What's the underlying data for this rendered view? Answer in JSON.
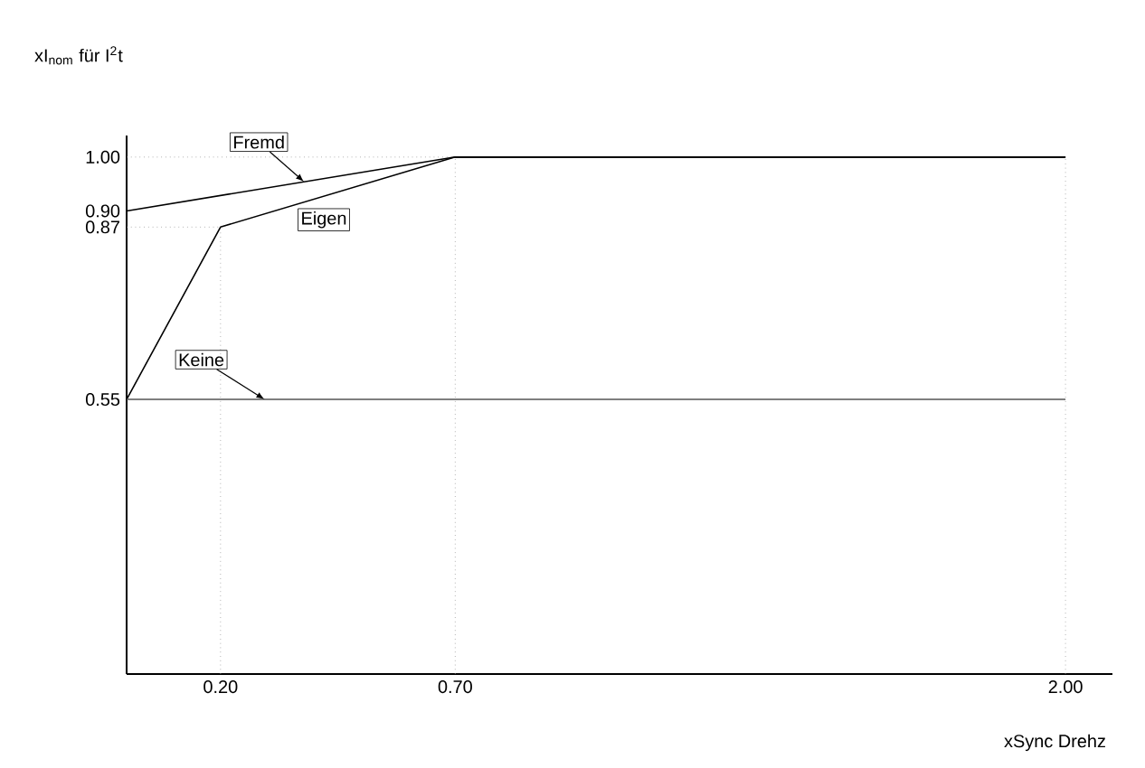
{
  "chart_data": {
    "type": "line",
    "xlabel": "xSync Drehz",
    "ylabel": "xI$_{nom}$ für I$^{2}$t",
    "xlim": [
      0,
      2.1
    ],
    "ylim": [
      0.04,
      1.04
    ],
    "xticks": [
      {
        "value": 0.2,
        "label": "0.20"
      },
      {
        "value": 0.7,
        "label": "0.70"
      },
      {
        "value": 2.0,
        "label": "2.00"
      }
    ],
    "yticks": [
      {
        "value": 0.55,
        "label": "0.55"
      },
      {
        "value": 0.87,
        "label": "0.87"
      },
      {
        "value": 0.9,
        "label": "0.90"
      },
      {
        "value": 1.0,
        "label": "1.00"
      }
    ],
    "legend": false,
    "marker": "none",
    "line_style": "solid",
    "series": [
      {
        "name": "Fremd",
        "color": "#000000",
        "x": [
          0,
          0.7,
          2.0
        ],
        "values": [
          0.9,
          1.0,
          1.0
        ]
      },
      {
        "name": "Eigen",
        "color": "#000000",
        "x": [
          0,
          0.2,
          0.7,
          2.0
        ],
        "values": [
          0.55,
          0.87,
          1.0,
          1.0
        ]
      },
      {
        "name": "Keine",
        "color": "#555555",
        "x": [
          0,
          2.0
        ],
        "values": [
          0.55,
          0.55
        ]
      }
    ],
    "ref_lines": [
      {
        "axis": "x",
        "value": 0.2,
        "line_style": "dotted",
        "color": "#888888"
      },
      {
        "axis": "x",
        "value": 0.7,
        "line_style": "dotted",
        "color": "#888888"
      },
      {
        "axis": "x",
        "value": 2.0,
        "line_style": "dotted",
        "color": "#888888"
      },
      {
        "axis": "y",
        "value": 0.87,
        "line_style": "dotted",
        "color": "#888888"
      },
      {
        "axis": "y",
        "value": 1.0,
        "line_style": "dotted",
        "color": "#888888"
      }
    ]
  }
}
